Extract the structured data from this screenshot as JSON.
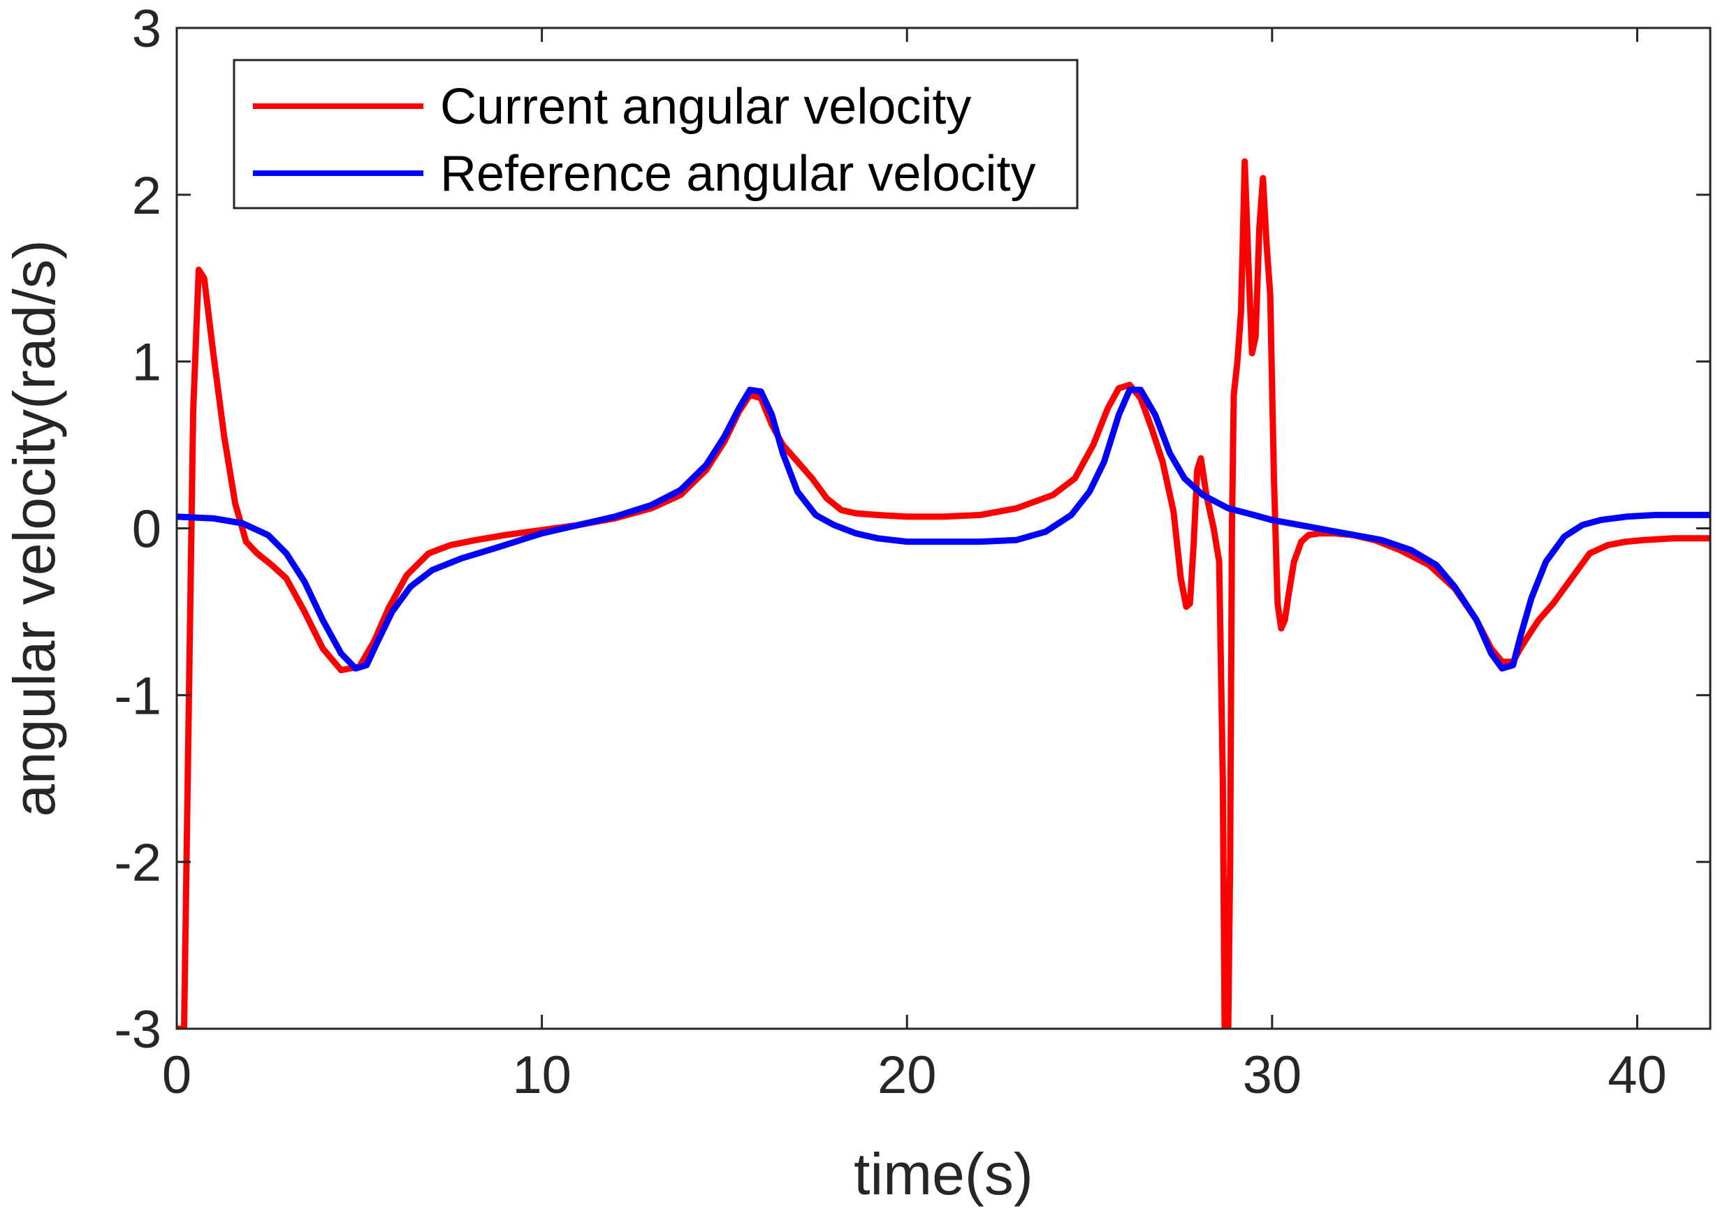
{
  "chart_data": {
    "type": "line",
    "title": "",
    "xlabel": "time(s)",
    "ylabel": "angular velocity(rad/s)",
    "xlim": [
      0,
      42
    ],
    "ylim": [
      -3,
      3
    ],
    "xticks": [
      0,
      10,
      20,
      30,
      40
    ],
    "yticks": [
      -3,
      -2,
      -1,
      0,
      1,
      2,
      3
    ],
    "xtick_labels": [
      "0",
      "10",
      "20",
      "30",
      "40"
    ],
    "ytick_labels": [
      "-3",
      "-2",
      "-1",
      "0",
      "1",
      "2",
      "3"
    ],
    "grid": false,
    "legend_position": "top-left",
    "series": [
      {
        "name": "Current angular velocity",
        "color": "#ff0000",
        "x": [
          0.0,
          0.2,
          0.3,
          0.45,
          0.6,
          0.75,
          1.0,
          1.3,
          1.6,
          1.9,
          2.2,
          2.6,
          3.0,
          3.5,
          4.0,
          4.5,
          5.0,
          5.4,
          5.8,
          6.3,
          6.9,
          7.5,
          8.2,
          9.0,
          10.0,
          11.0,
          12.0,
          13.0,
          13.8,
          14.5,
          15.0,
          15.4,
          15.7,
          16.0,
          16.3,
          16.6,
          17.0,
          17.4,
          17.8,
          18.2,
          18.6,
          19.2,
          20.0,
          21.0,
          22.0,
          23.0,
          24.0,
          24.6,
          25.1,
          25.5,
          25.8,
          26.1,
          26.4,
          26.7,
          27.0,
          27.3,
          27.5,
          27.65,
          27.75,
          27.85,
          27.95,
          28.05,
          28.2,
          28.4,
          28.55,
          28.65,
          28.7,
          28.75,
          28.8,
          28.85,
          28.9,
          28.95,
          29.05,
          29.15,
          29.25,
          29.35,
          29.45,
          29.55,
          29.65,
          29.75,
          29.85,
          29.95,
          30.05,
          30.15,
          30.25,
          30.35,
          30.45,
          30.6,
          30.8,
          31.0,
          31.3,
          31.7,
          32.2,
          32.8,
          33.5,
          34.3,
          35.0,
          35.6,
          36.0,
          36.3,
          36.6,
          36.8,
          37.0,
          37.3,
          37.7,
          38.2,
          38.7,
          39.2,
          39.7,
          40.2,
          41.0,
          42.0
        ],
        "y": [
          -3.0,
          -3.0,
          -1.5,
          0.7,
          1.55,
          1.5,
          1.05,
          0.55,
          0.15,
          -0.08,
          -0.15,
          -0.22,
          -0.3,
          -0.5,
          -0.72,
          -0.85,
          -0.83,
          -0.68,
          -0.48,
          -0.28,
          -0.15,
          -0.1,
          -0.07,
          -0.04,
          -0.01,
          0.02,
          0.06,
          0.12,
          0.2,
          0.35,
          0.52,
          0.7,
          0.8,
          0.78,
          0.62,
          0.5,
          0.4,
          0.3,
          0.18,
          0.11,
          0.09,
          0.08,
          0.07,
          0.07,
          0.08,
          0.12,
          0.2,
          0.3,
          0.5,
          0.72,
          0.84,
          0.86,
          0.78,
          0.6,
          0.4,
          0.1,
          -0.3,
          -0.47,
          -0.45,
          -0.1,
          0.35,
          0.42,
          0.2,
          0.0,
          -0.2,
          -1.5,
          -3.0,
          -3.0,
          -3.0,
          -2.0,
          0.0,
          0.8,
          1.0,
          1.3,
          2.2,
          1.6,
          1.05,
          1.15,
          1.8,
          2.1,
          1.7,
          1.4,
          0.3,
          -0.45,
          -0.6,
          -0.55,
          -0.4,
          -0.2,
          -0.08,
          -0.04,
          -0.03,
          -0.03,
          -0.04,
          -0.07,
          -0.13,
          -0.22,
          -0.36,
          -0.55,
          -0.72,
          -0.8,
          -0.8,
          -0.72,
          -0.65,
          -0.55,
          -0.45,
          -0.3,
          -0.15,
          -0.1,
          -0.08,
          -0.07,
          -0.06,
          -0.06
        ]
      },
      {
        "name": "Reference angular velocity",
        "color": "#0000ff",
        "x": [
          0.0,
          1.0,
          1.8,
          2.5,
          3.0,
          3.5,
          4.0,
          4.5,
          4.9,
          5.2,
          5.5,
          5.9,
          6.4,
          7.0,
          7.8,
          8.7,
          10.0,
          11.0,
          12.0,
          13.0,
          13.8,
          14.5,
          15.0,
          15.4,
          15.7,
          16.0,
          16.3,
          16.6,
          17.0,
          17.5,
          18.0,
          18.6,
          19.2,
          20.0,
          21.0,
          22.0,
          23.0,
          23.8,
          24.5,
          25.0,
          25.4,
          25.8,
          26.1,
          26.4,
          26.8,
          27.2,
          27.6,
          28.1,
          28.8,
          29.5,
          30.0,
          31.0,
          32.0,
          33.0,
          33.8,
          34.5,
          35.0,
          35.6,
          36.0,
          36.3,
          36.6,
          36.8,
          37.1,
          37.5,
          38.0,
          38.5,
          39.0,
          39.7,
          40.5,
          41.3,
          42.0
        ],
        "y": [
          0.07,
          0.06,
          0.03,
          -0.04,
          -0.15,
          -0.32,
          -0.55,
          -0.75,
          -0.84,
          -0.82,
          -0.68,
          -0.5,
          -0.35,
          -0.25,
          -0.18,
          -0.12,
          -0.03,
          0.02,
          0.07,
          0.14,
          0.23,
          0.38,
          0.55,
          0.72,
          0.83,
          0.82,
          0.68,
          0.45,
          0.22,
          0.08,
          0.02,
          -0.03,
          -0.06,
          -0.08,
          -0.08,
          -0.08,
          -0.07,
          -0.02,
          0.08,
          0.22,
          0.4,
          0.68,
          0.83,
          0.83,
          0.68,
          0.45,
          0.3,
          0.2,
          0.12,
          0.08,
          0.05,
          0.01,
          -0.03,
          -0.07,
          -0.13,
          -0.22,
          -0.35,
          -0.55,
          -0.75,
          -0.84,
          -0.82,
          -0.65,
          -0.42,
          -0.2,
          -0.05,
          0.02,
          0.05,
          0.07,
          0.08,
          0.08,
          0.08
        ]
      }
    ]
  }
}
